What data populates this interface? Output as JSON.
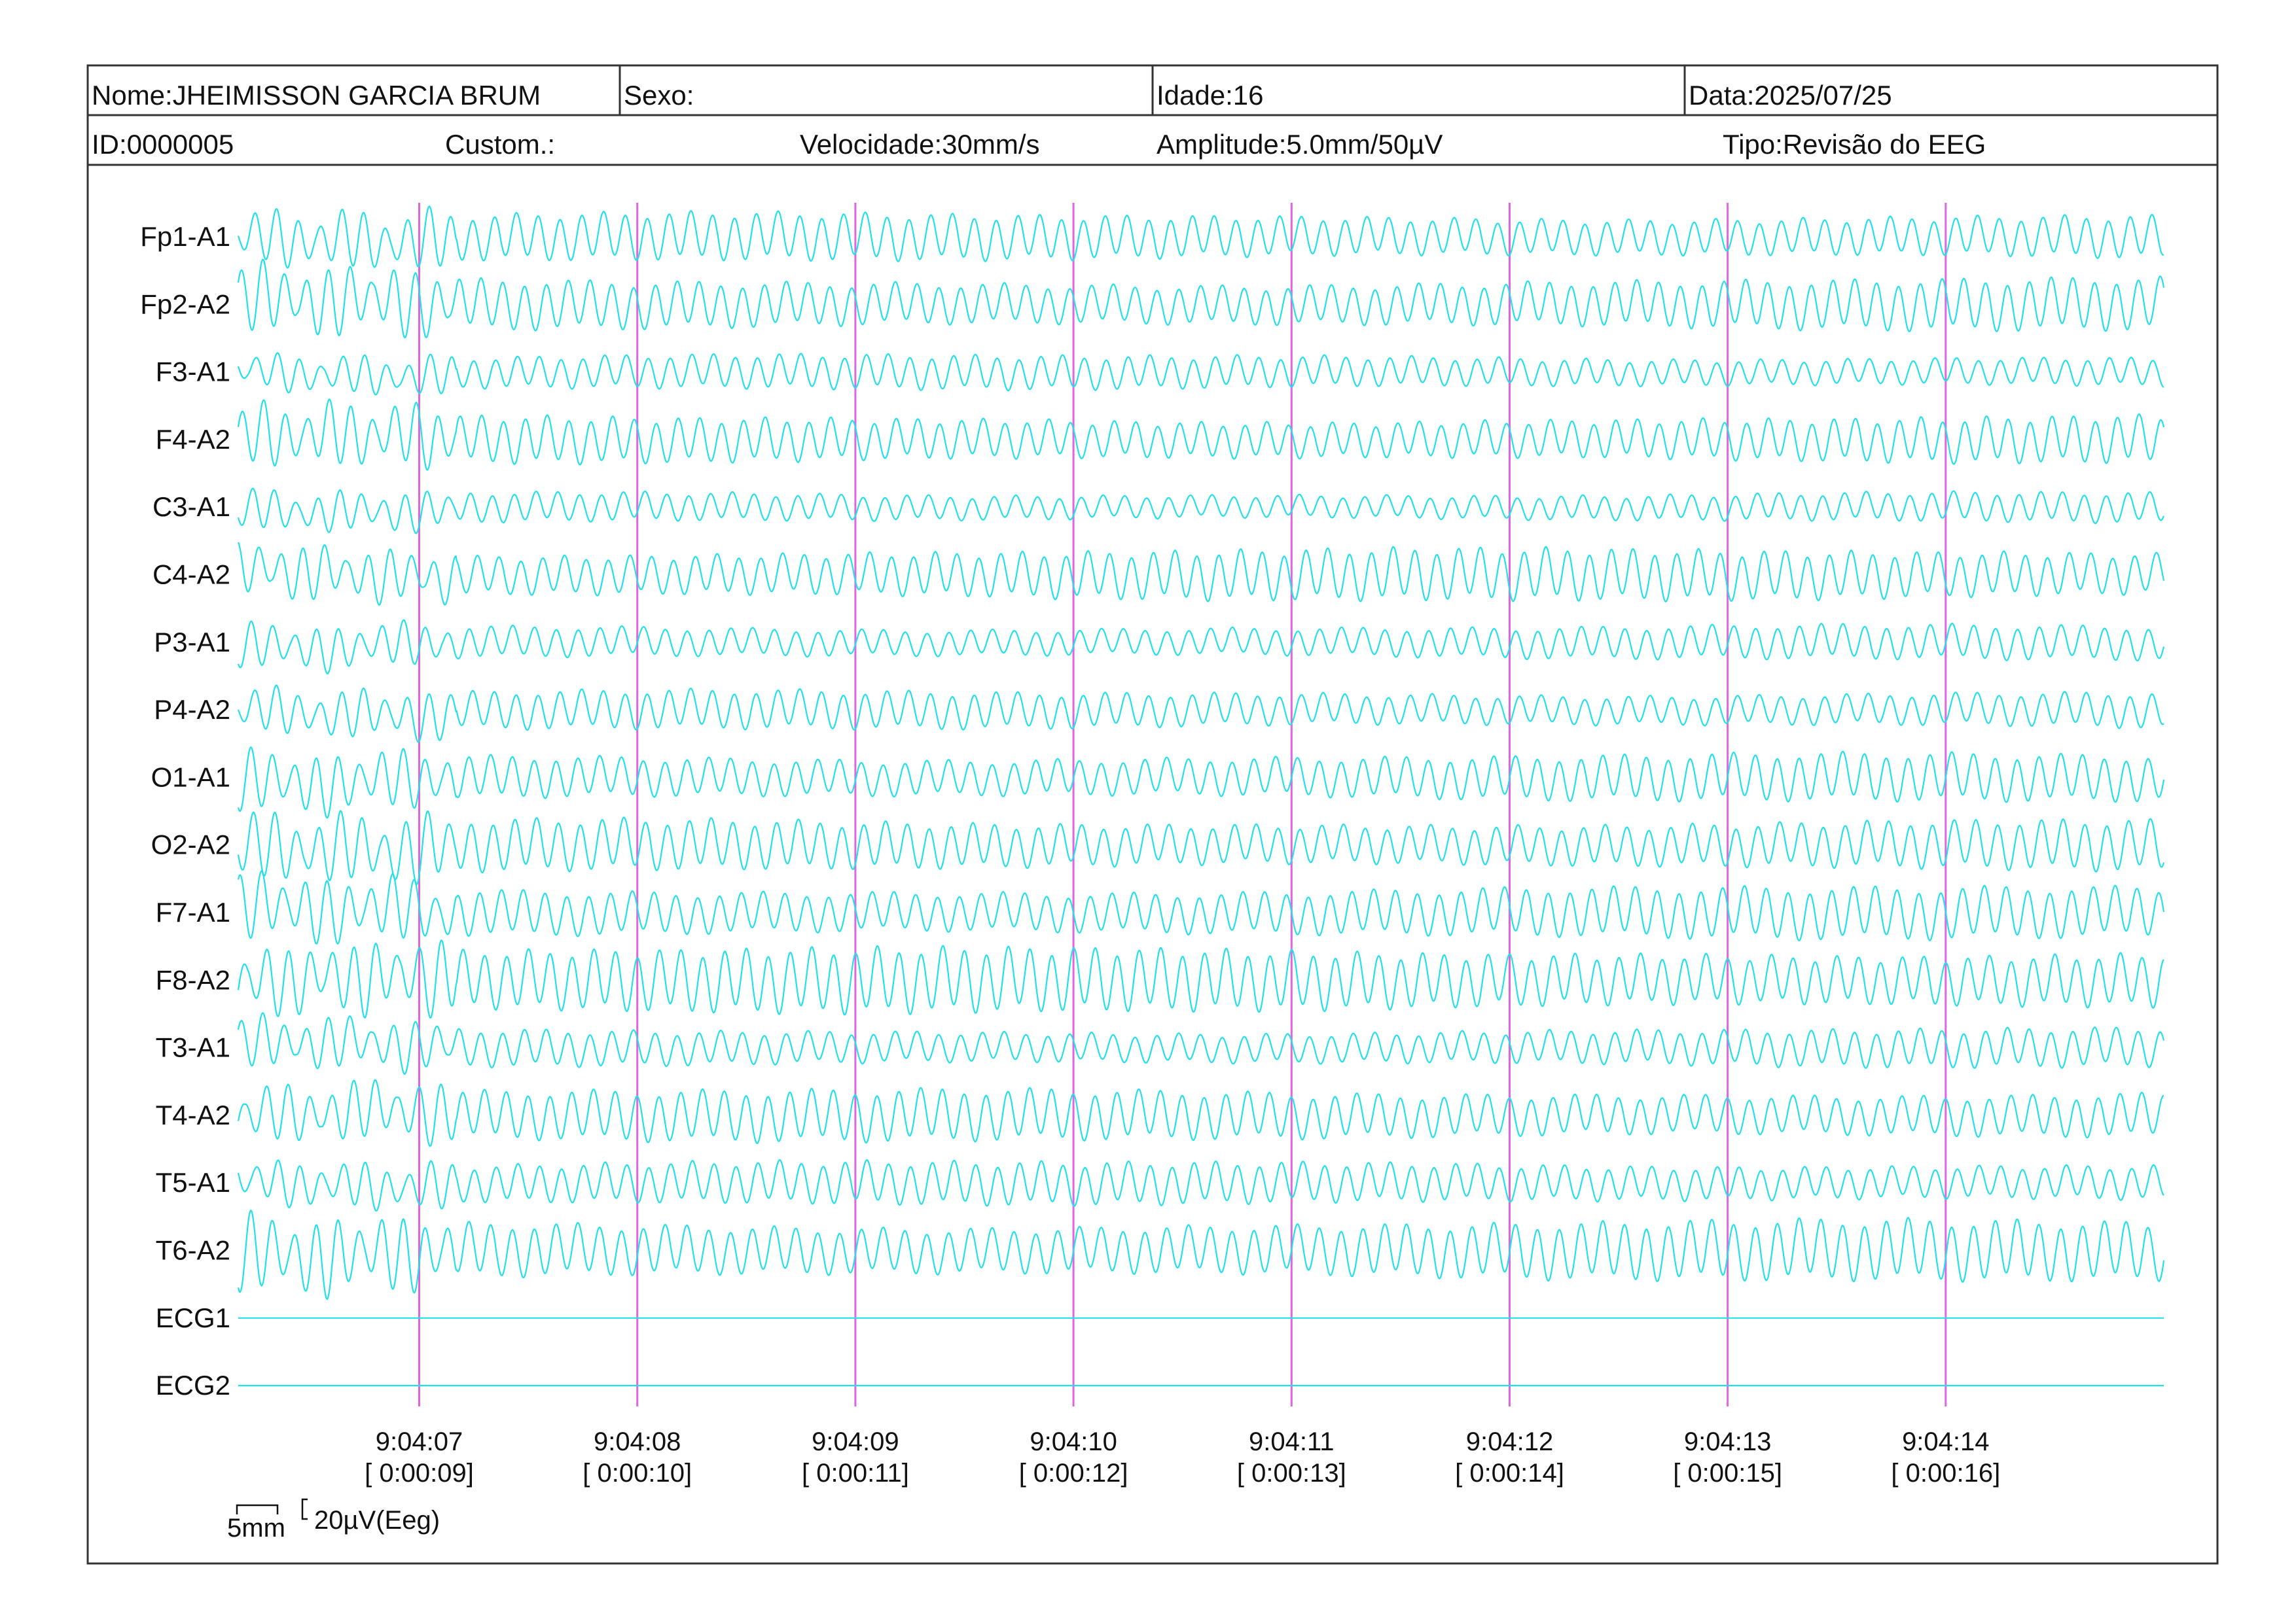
{
  "header": {
    "row1": {
      "name": "Nome:JHEIMISSON GARCIA BRUM",
      "sex": "Sexo:",
      "age": "Idade:16",
      "date": "Data:2025/07/25"
    },
    "row2": {
      "id": "ID:0000005",
      "custom": "Custom.:",
      "speed": "Velocidade:30mm/s",
      "amplitude": "Amplitude:5.0mm/50µV",
      "type": "Tipo:Revisão do EEG"
    }
  },
  "colors": {
    "trace": "#22e0ea",
    "second_marker": "#e066e0",
    "border": "#333333",
    "text": "#111111"
  },
  "chart_data": {
    "type": "line",
    "title": "",
    "xlabel": "",
    "ylabel": "",
    "grid": false,
    "channels": [
      {
        "name": "Fp1-A1",
        "amplitude": 0.55,
        "flat": false
      },
      {
        "name": "Fp2-A2",
        "amplitude": 0.6,
        "flat": false
      },
      {
        "name": "F3-A1",
        "amplitude": 0.4,
        "flat": false
      },
      {
        "name": "F4-A2",
        "amplitude": 0.55,
        "flat": false
      },
      {
        "name": "C3-A1",
        "amplitude": 0.35,
        "flat": false
      },
      {
        "name": "C4-A2",
        "amplitude": 0.6,
        "flat": false
      },
      {
        "name": "P3-A1",
        "amplitude": 0.4,
        "flat": false
      },
      {
        "name": "P4-A2",
        "amplitude": 0.45,
        "flat": false
      },
      {
        "name": "O1-A1",
        "amplitude": 0.55,
        "flat": false
      },
      {
        "name": "O2-A2",
        "amplitude": 0.6,
        "flat": false
      },
      {
        "name": "F7-A1",
        "amplitude": 0.6,
        "flat": false
      },
      {
        "name": "F8-A2",
        "amplitude": 0.75,
        "flat": false
      },
      {
        "name": "T3-A1",
        "amplitude": 0.45,
        "flat": false
      },
      {
        "name": "T4-A2",
        "amplitude": 0.6,
        "flat": false
      },
      {
        "name": "T5-A1",
        "amplitude": 0.5,
        "flat": false
      },
      {
        "name": "T6-A2",
        "amplitude": 0.7,
        "flat": false
      },
      {
        "name": "ECG1",
        "amplitude": 0,
        "flat": true
      },
      {
        "name": "ECG2",
        "amplitude": 0,
        "flat": true
      }
    ],
    "time_axis": {
      "clock": [
        "9:04:07",
        "9:04:08",
        "9:04:09",
        "9:04:10",
        "9:04:11",
        "9:04:12",
        "9:04:13",
        "9:04:14"
      ],
      "elapsed": [
        "[ 0:00:09]",
        "[ 0:00:10]",
        "[ 0:00:11]",
        "[ 0:00:12]",
        "[ 0:00:13]",
        "[ 0:00:14]",
        "[ 0:00:15]",
        "[ 0:00:16]"
      ],
      "seconds_shown": 8.83,
      "first_marker_second": 0.83,
      "dominant_frequency_hz": 10
    },
    "scale": {
      "time_label": "5mm",
      "amplitude_label": "20µV(Eeg)"
    }
  }
}
